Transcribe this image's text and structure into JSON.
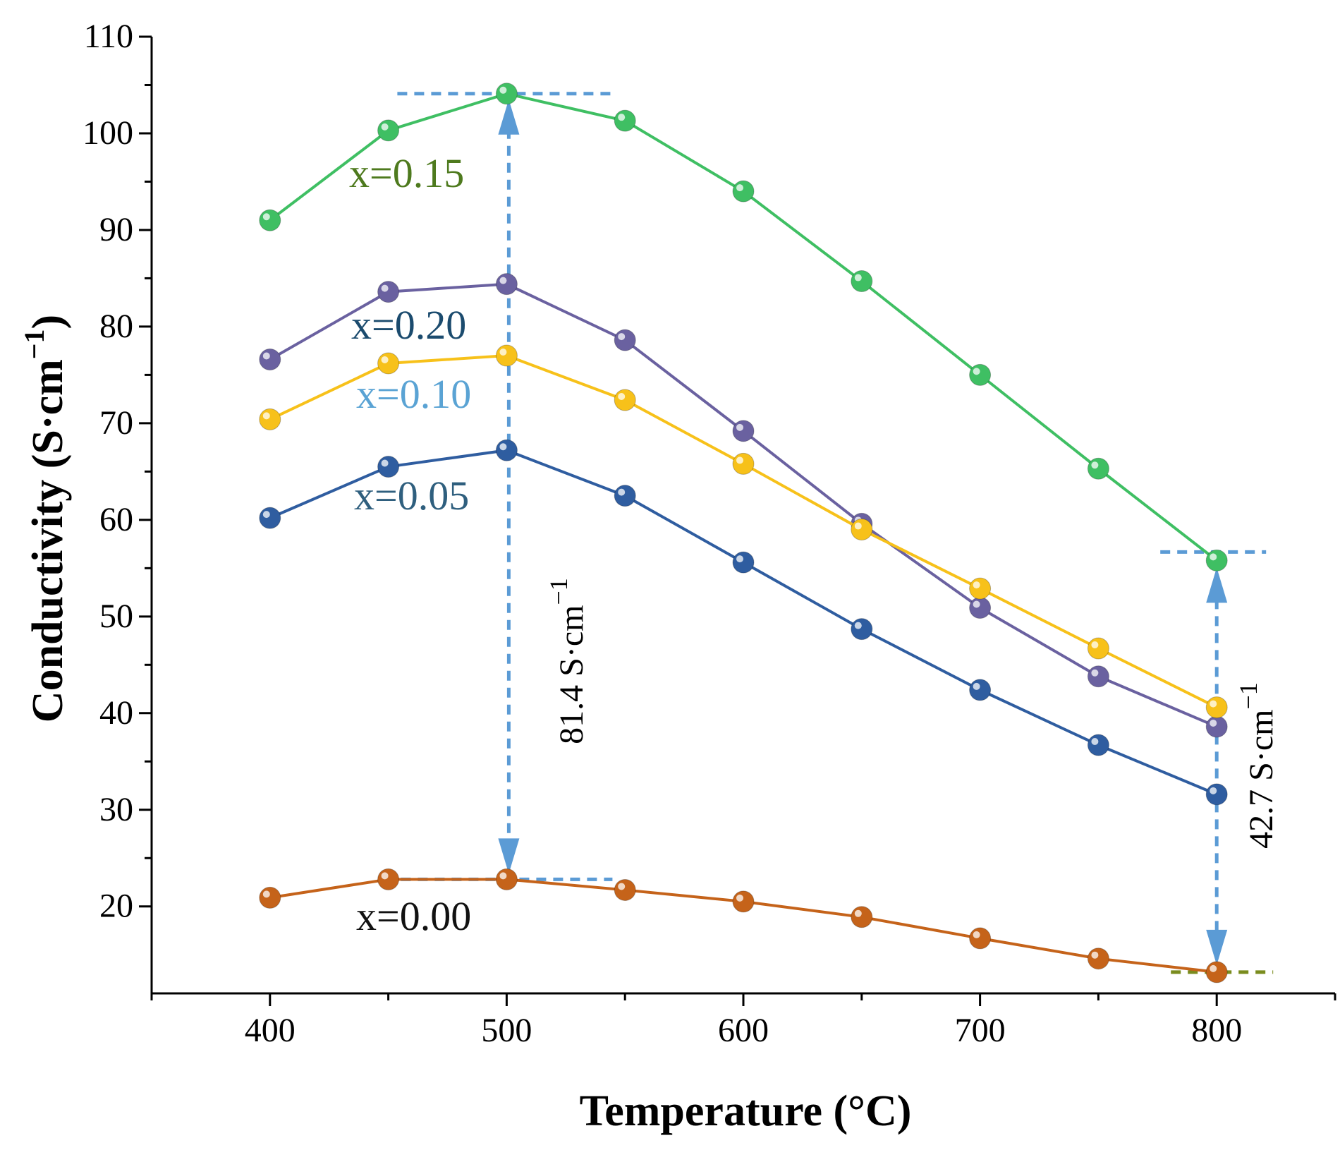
{
  "chart_data": {
    "type": "line",
    "xlabel": "Temperature (°C)",
    "ylabel_main": "Conductivity (S·cm",
    "ylabel_sup": "−1",
    "ylabel_close": ")",
    "xlim": [
      350,
      850
    ],
    "ylim": [
      11,
      110
    ],
    "x_ticks": [
      400,
      500,
      600,
      700,
      800
    ],
    "y_ticks": [
      20,
      30,
      40,
      50,
      60,
      70,
      80,
      90,
      100,
      110
    ],
    "x": [
      400,
      450,
      500,
      550,
      600,
      650,
      700,
      750,
      800
    ],
    "series": [
      {
        "name": "x=0.15",
        "color": "#3fbf63",
        "label_color": "#4e7a1e",
        "values": [
          91.0,
          100.3,
          104.1,
          101.3,
          94.0,
          84.7,
          75.0,
          65.3,
          55.8
        ]
      },
      {
        "name": "x=0.20",
        "color": "#6a61a0",
        "label_color": "#1b4b6e",
        "values": [
          76.6,
          83.6,
          84.4,
          78.6,
          69.2,
          59.6,
          50.9,
          43.8,
          38.6
        ]
      },
      {
        "name": "x=0.10",
        "color": "#f7c11a",
        "label_color": "#5aa3d4",
        "values": [
          70.4,
          76.2,
          77.0,
          72.4,
          65.8,
          59.0,
          52.9,
          46.7,
          40.6
        ]
      },
      {
        "name": "x=0.05",
        "color": "#2f5da0",
        "label_color": "#2f5f7e",
        "values": [
          60.2,
          65.5,
          67.2,
          62.5,
          55.6,
          48.7,
          42.4,
          36.7,
          31.6
        ]
      },
      {
        "name": "x=0.00",
        "color": "#c5631a",
        "label_color": "#111111",
        "values": [
          20.9,
          22.8,
          22.8,
          21.7,
          20.5,
          18.9,
          16.7,
          14.6,
          13.2
        ]
      }
    ],
    "annotations": {
      "diff_500": {
        "value_text": "81.4 S·cm",
        "sup": "−1",
        "x": 500,
        "top": 104.1,
        "bottom": 22.8
      },
      "diff_800": {
        "value_text": "42.7 S·cm",
        "sup": "−1",
        "x": 800,
        "top": 55.8,
        "bottom": 13.2
      },
      "arrow_color": "#5b9bd5",
      "baseline_800_color": "#7a8c1e"
    }
  }
}
